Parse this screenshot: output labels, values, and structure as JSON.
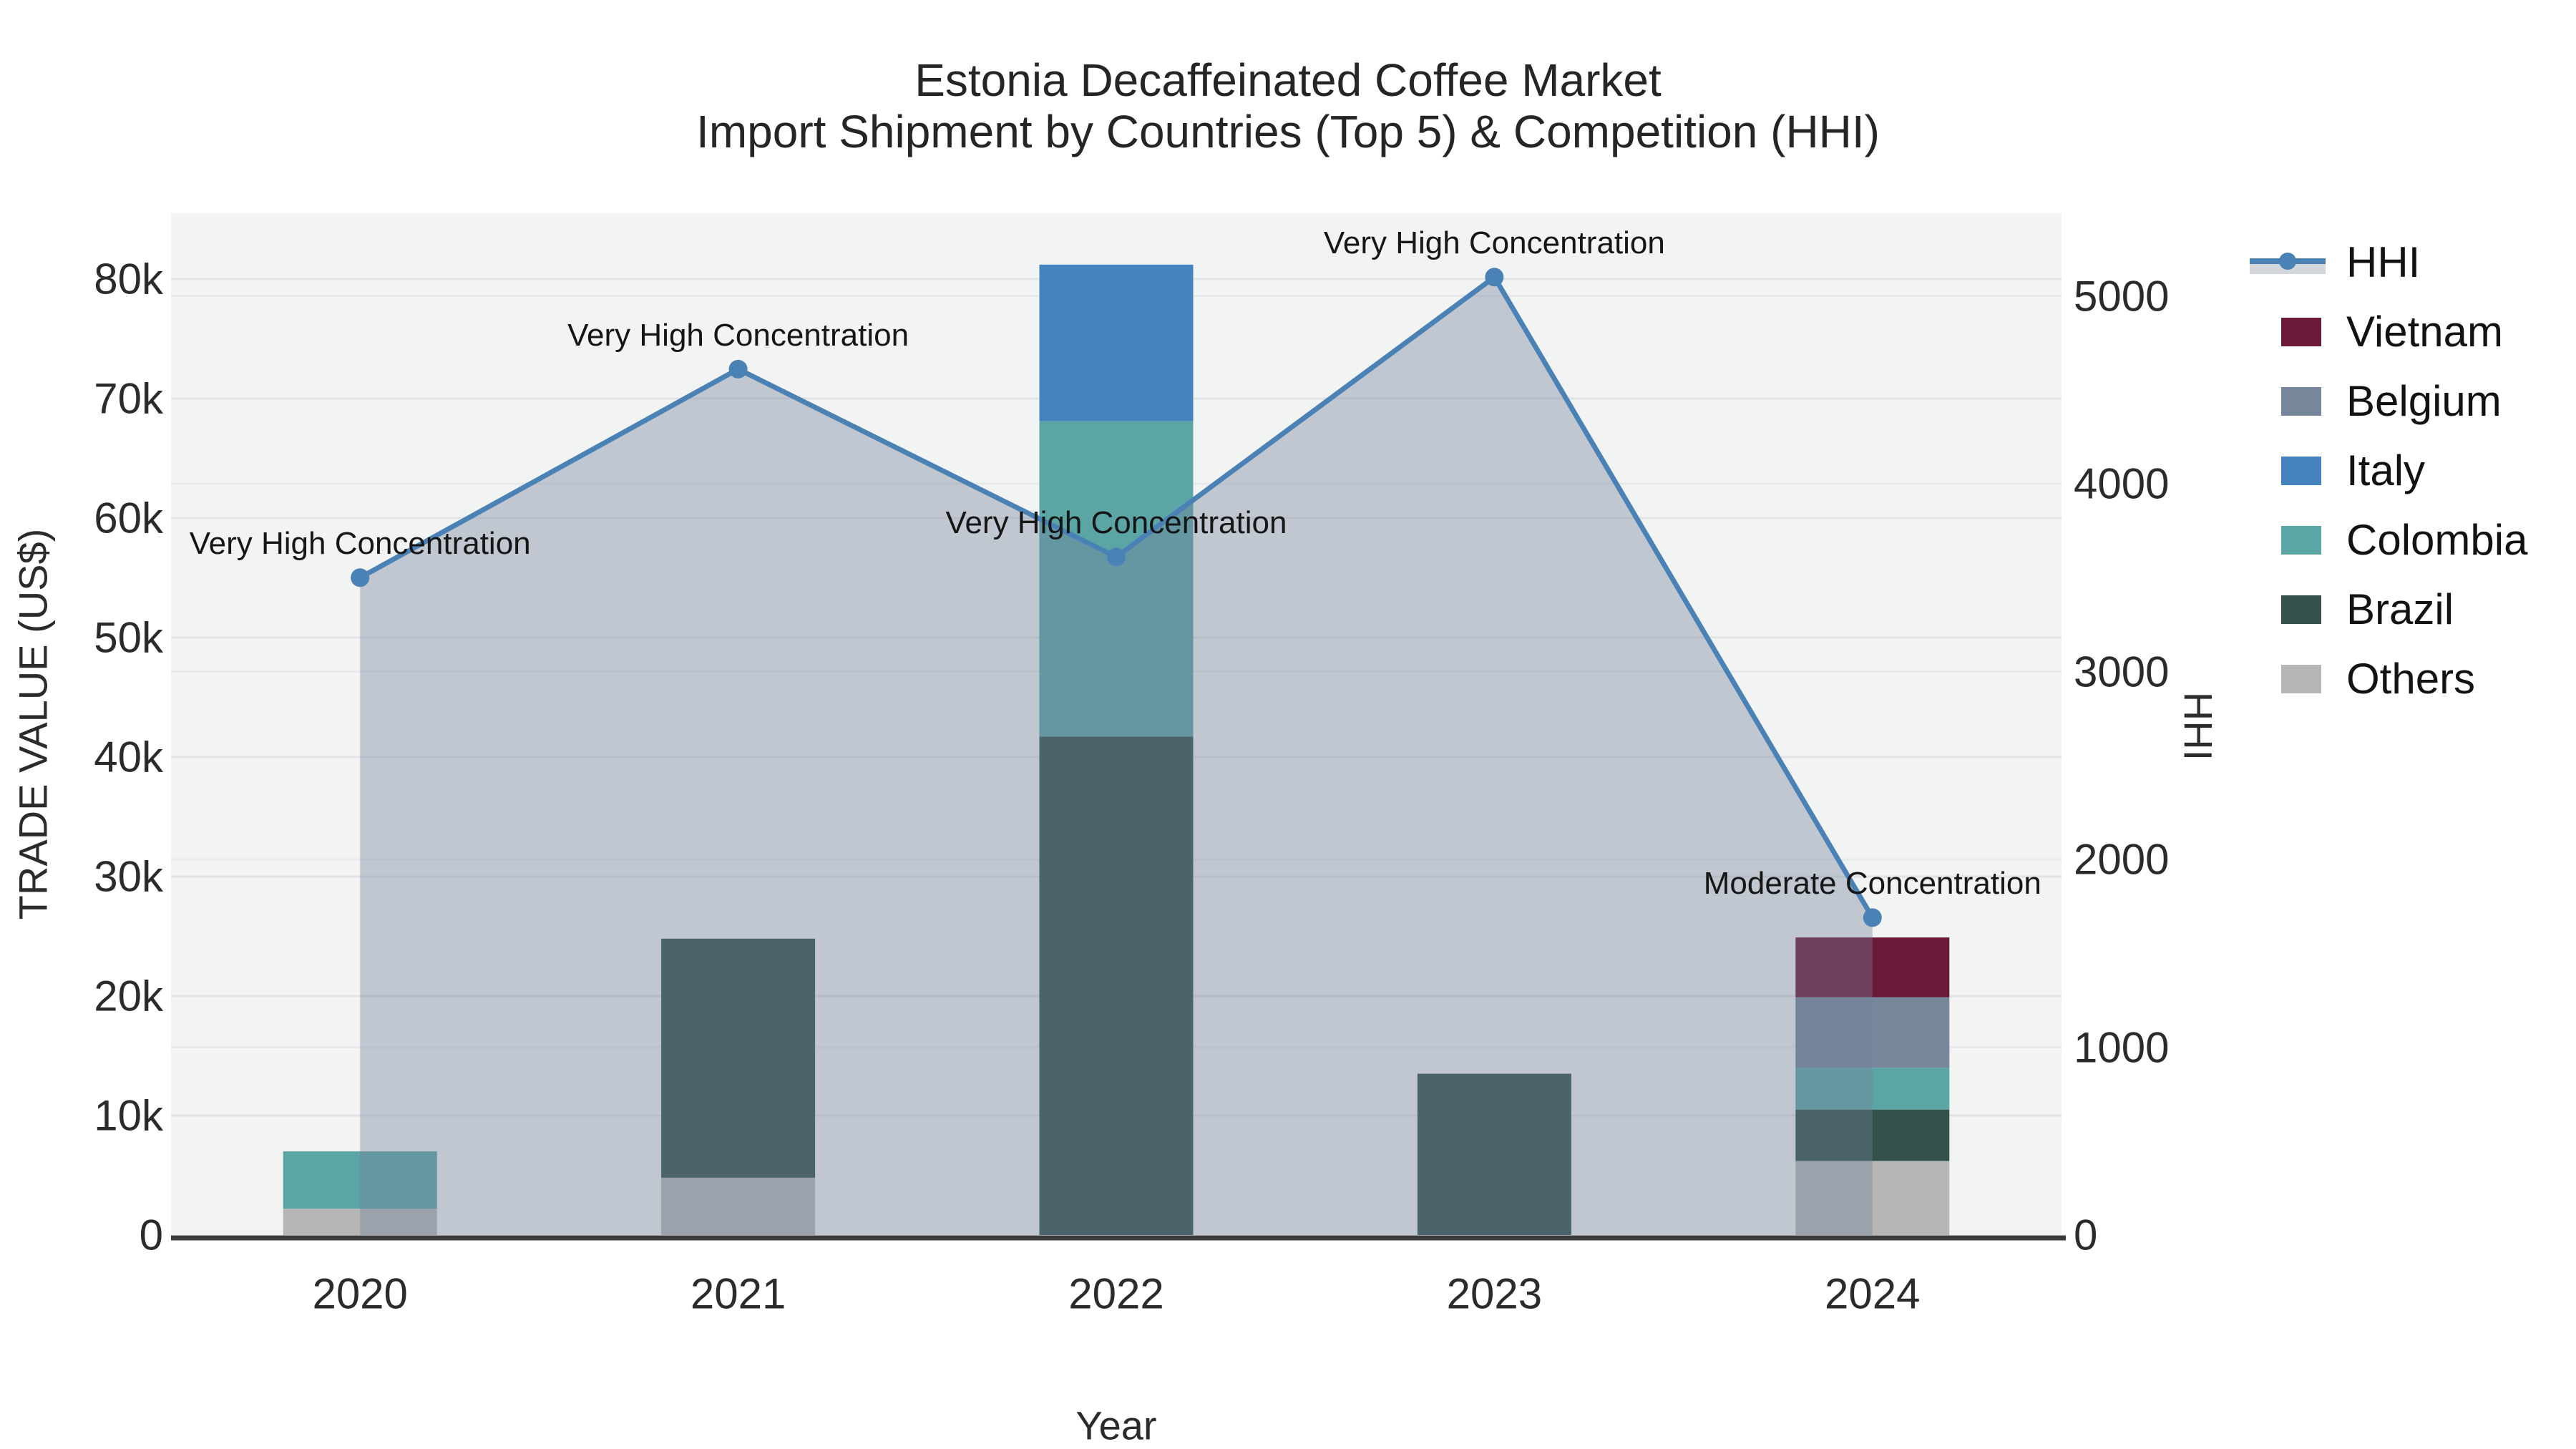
{
  "title": {
    "line1": "Estonia Decaffeinated Coffee Market",
    "line2": "Import Shipment by Countries (Top 5) & Competition (HHI)"
  },
  "axes": {
    "x_title": "Year",
    "y_left_title": "TRADE VALUE (US$)",
    "y_right_title": "HHI",
    "x_tick_labels": [
      "2020",
      "2021",
      "2022",
      "2023",
      "2024"
    ],
    "y_left_tick_labels": [
      "0",
      "10k",
      "20k",
      "30k",
      "40k",
      "50k",
      "60k",
      "70k",
      "80k"
    ],
    "y_left_tick_values": [
      0,
      10000,
      20000,
      30000,
      40000,
      50000,
      60000,
      70000,
      80000
    ],
    "y_right_tick_labels": [
      "0",
      "1000",
      "2000",
      "3000",
      "4000",
      "5000"
    ],
    "y_right_tick_values": [
      0,
      1000,
      2000,
      3000,
      4000,
      5000
    ]
  },
  "chart_data": {
    "type": "bar",
    "subtype": "stacked-bars-with-dual-axis-line",
    "title": "Estonia Decaffeinated Coffee Market Import Shipment by Countries (Top 5) & Competition (HHI)",
    "xlabel": "Year",
    "ylabel_left": "TRADE VALUE (US$)",
    "ylabel_right": "HHI",
    "categories": [
      2020,
      2021,
      2022,
      2023,
      2024
    ],
    "ylim_left": [
      0,
      85500
    ],
    "ylim_right": [
      0,
      5440
    ],
    "grid": true,
    "legend_position": "right",
    "stack_order_bottom_to_top": [
      "Others",
      "Brazil",
      "Colombia",
      "Italy",
      "Belgium",
      "Vietnam"
    ],
    "series": [
      {
        "name": "Others",
        "axis": "left",
        "color": "#B5B6B5",
        "values": [
          2200,
          4800,
          0,
          0,
          6200
        ]
      },
      {
        "name": "Brazil",
        "axis": "left",
        "color": "#35514E",
        "values": [
          0,
          20000,
          41700,
          13500,
          4300
        ]
      },
      {
        "name": "Colombia",
        "axis": "left",
        "color": "#5CA5A5",
        "values": [
          4800,
          0,
          26400,
          0,
          3500
        ]
      },
      {
        "name": "Italy",
        "axis": "left",
        "color": "#4584BE",
        "values": [
          0,
          0,
          13100,
          0,
          0
        ]
      },
      {
        "name": "Belgium",
        "axis": "left",
        "color": "#76869B",
        "values": [
          0,
          0,
          0,
          0,
          5900
        ]
      },
      {
        "name": "Vietnam",
        "axis": "left",
        "color": "#6C1839",
        "values": [
          0,
          0,
          0,
          0,
          5000
        ]
      }
    ],
    "line_series": {
      "name": "HHI",
      "axis": "right",
      "color": "#4A82B6",
      "area_fill": "rgba(114,130,155,0.38)",
      "values": [
        3500,
        4610,
        3610,
        5100,
        1690
      ]
    },
    "annotations": [
      {
        "category": 2020,
        "text": "Very High Concentration"
      },
      {
        "category": 2021,
        "text": "Very High Concentration"
      },
      {
        "category": 2022,
        "text": "Very High Concentration"
      },
      {
        "category": 2023,
        "text": "Very High Concentration"
      },
      {
        "category": 2024,
        "text": "Moderate Concentration"
      }
    ]
  },
  "legend": {
    "items": [
      {
        "label": "HHI",
        "kind": "line"
      },
      {
        "label": "Vietnam",
        "kind": "box",
        "color": "#6C1839"
      },
      {
        "label": "Belgium",
        "kind": "box",
        "color": "#76869B"
      },
      {
        "label": "Italy",
        "kind": "box",
        "color": "#4584BE"
      },
      {
        "label": "Colombia",
        "kind": "box",
        "color": "#5CA5A5"
      },
      {
        "label": "Brazil",
        "kind": "box",
        "color": "#35514E"
      },
      {
        "label": "Others",
        "kind": "box",
        "color": "#B5B6B5"
      }
    ]
  },
  "colors": {
    "plot_background": "#F2F3F3",
    "grid_left": "#E2E3E4",
    "grid_right": "#E8E9EA",
    "axis_line": "#3B3B3B",
    "hhi_line": "#4A82B6",
    "hhi_area": "rgba(114,130,155,0.38)",
    "legend_area_sample": "#D2D6DA",
    "text": "#2B2B2B"
  }
}
